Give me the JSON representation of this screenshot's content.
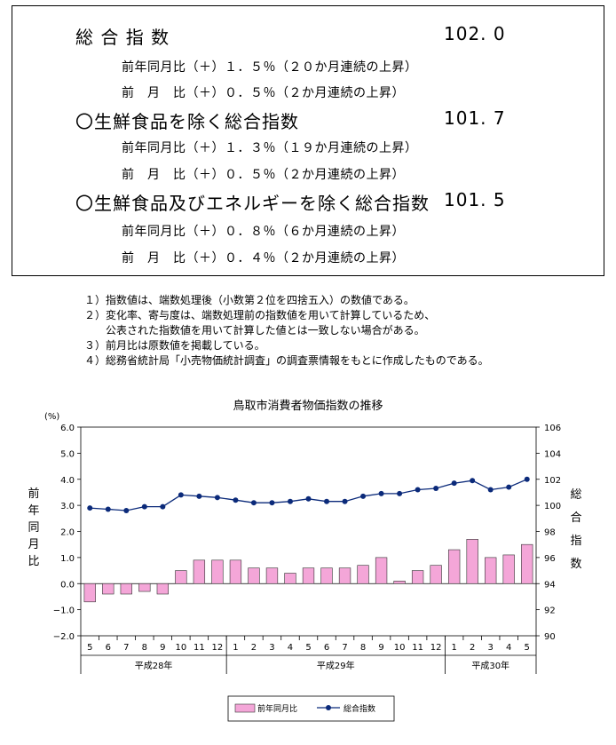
{
  "summary": {
    "total": {
      "title": "総 合 指 数",
      "value": "102. 0",
      "yoy": "前年同月比（＋）１．５％（２０か月連続の上昇）",
      "mom": "前　月　比（＋）０．５％（２か月連続の上昇）"
    },
    "ex_fresh": {
      "title": "〇生鮮食品を除く総合指数",
      "value": "101. 7",
      "yoy": "前年同月比（＋）１．３％（１９か月連続の上昇）",
      "mom": "前　月　比（＋）０．５％（２か月連続の上昇）"
    },
    "ex_fresh_energy": {
      "title": "〇生鮮食品及びエネルギーを除く総合指数",
      "value": "101. 5",
      "yoy": "前年同月比（＋）０．８％（６か月連続の上昇）",
      "mom": "前　月　比（＋）０．４％（２か月連続の上昇）"
    }
  },
  "notes": [
    "１）指数値は、端数処理後（小数第２位を四捨五入）の数値である。",
    "２）変化率、寄与度は、端数処理前の指数値を用いて計算しているため、",
    "　　公表された指数値を用いて計算した値とは一致しない場合がある。",
    "３）前月比は原数値を掲載している。",
    "４）総務省統計局「小売物価統計調査」の調査票情報をもとに作成したものである。"
  ],
  "chart_data": {
    "type": "bar",
    "title": "鳥取市消費者物価指数の推移",
    "categories": [
      "5",
      "6",
      "7",
      "8",
      "9",
      "10",
      "11",
      "12",
      "1",
      "2",
      "3",
      "4",
      "5",
      "6",
      "7",
      "8",
      "9",
      "10",
      "11",
      "12",
      "1",
      "2",
      "3",
      "4",
      "5"
    ],
    "year_groups": [
      {
        "label": "平成28年",
        "count": 8
      },
      {
        "label": "平成29年",
        "count": 12
      },
      {
        "label": "平成30年",
        "count": 5
      }
    ],
    "series": [
      {
        "name": "前年同月比",
        "type": "bar",
        "axis": "left",
        "color": "#f4a6d8",
        "values": [
          -0.7,
          -0.4,
          -0.4,
          -0.3,
          -0.4,
          0.5,
          0.9,
          0.9,
          0.9,
          0.6,
          0.6,
          0.4,
          0.6,
          0.6,
          0.6,
          0.7,
          1.0,
          0.1,
          0.5,
          0.7,
          1.3,
          1.7,
          1.0,
          1.1,
          1.5
        ]
      },
      {
        "name": "総合指数",
        "type": "line",
        "axis": "right",
        "color": "#0b2a7a",
        "values": [
          99.8,
          99.7,
          99.6,
          99.9,
          99.9,
          100.8,
          100.7,
          100.6,
          100.4,
          100.2,
          100.2,
          100.3,
          100.5,
          100.3,
          100.3,
          100.7,
          100.9,
          100.9,
          101.2,
          101.3,
          101.7,
          101.9,
          101.2,
          101.4,
          102.0
        ]
      }
    ],
    "yaxis_left": {
      "label": "前年同月比",
      "unit": "(%)",
      "range": [
        -2.0,
        6.0
      ],
      "ticks": [
        "6.0",
        "5.0",
        "4.0",
        "3.0",
        "2.0",
        "1.0",
        "0.0",
        "−1.0",
        "−2.0"
      ]
    },
    "yaxis_right": {
      "label": "総合指数",
      "range": [
        90,
        106
      ],
      "ticks": [
        "106",
        "104",
        "102",
        "100",
        "98",
        "96",
        "94",
        "92",
        "90"
      ]
    },
    "legend_position": "bottom-center",
    "grid": false
  }
}
